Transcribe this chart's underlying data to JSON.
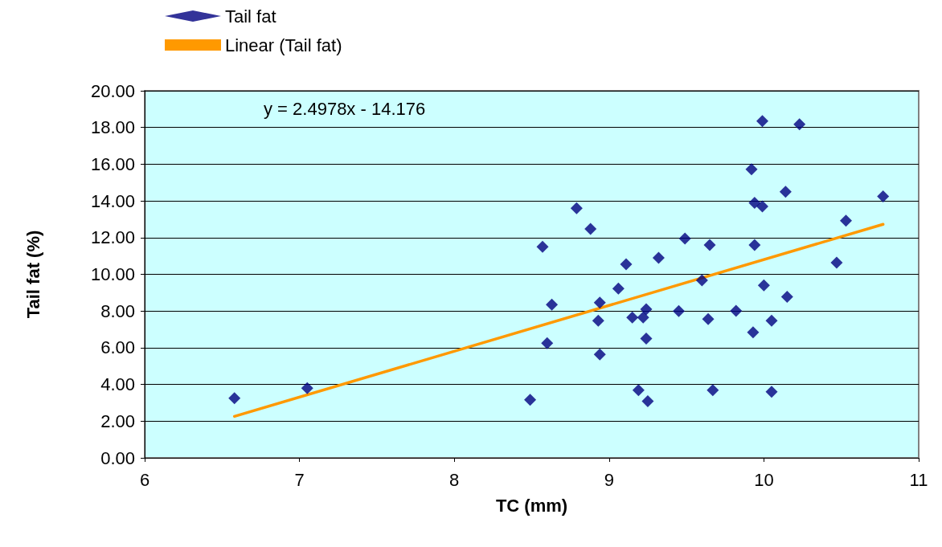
{
  "chart_data": {
    "type": "scatter",
    "xlabel": "TC (mm)",
    "ylabel": "Tail fat (%)",
    "annotations": [
      "y = 2.4978x - 14.176"
    ],
    "series": [
      {
        "name": "Tail fat",
        "color": "#000080",
        "marker": "diamond",
        "x": [
          6.58,
          7.05,
          8.49,
          8.57,
          8.6,
          8.63,
          8.79,
          8.88,
          8.93,
          8.94,
          8.94,
          9.06,
          9.11,
          9.15,
          9.19,
          9.22,
          9.24,
          9.24,
          9.25,
          9.32,
          9.45,
          9.49,
          9.6,
          9.64,
          9.65,
          9.67,
          9.82,
          9.92,
          9.93,
          9.94,
          9.94,
          9.99,
          9.99,
          10.0,
          10.05,
          10.05,
          10.14,
          10.15,
          10.23,
          10.47,
          10.53,
          10.77
        ],
        "values": [
          3.25,
          3.8,
          3.16,
          11.5,
          6.25,
          8.35,
          13.6,
          12.47,
          7.47,
          8.46,
          5.63,
          9.22,
          10.55,
          7.65,
          3.69,
          7.65,
          8.1,
          6.5,
          3.09,
          10.9,
          8.0,
          11.95,
          9.67,
          7.56,
          11.6,
          3.69,
          8.01,
          15.72,
          6.84,
          13.89,
          11.6,
          18.35,
          13.7,
          9.4,
          7.47,
          3.6,
          14.5,
          8.78,
          18.17,
          10.63,
          12.92,
          14.24
        ]
      },
      {
        "name": "Linear (Tail fat)",
        "type": "line",
        "color": "#ff9900",
        "marker": "none",
        "x": [
          6.58,
          10.77
        ],
        "values": [
          2.26,
          12.725
        ]
      }
    ],
    "xlim": [
      6,
      11
    ],
    "xticks": [
      6,
      7,
      8,
      9,
      10,
      11
    ],
    "ylim": [
      0,
      20
    ],
    "yticks": [
      {
        "value": 0,
        "label": "0.00"
      },
      {
        "value": 2,
        "label": "2.00"
      },
      {
        "value": 4,
        "label": "4.00"
      },
      {
        "value": 6,
        "label": "6.00"
      },
      {
        "value": 8,
        "label": "8.00"
      },
      {
        "value": 10,
        "label": "10.00"
      },
      {
        "value": 12,
        "label": "12.00"
      },
      {
        "value": 14,
        "label": "14.00"
      },
      {
        "value": 16,
        "label": "16.00"
      },
      {
        "value": 18,
        "label": "18.00"
      },
      {
        "value": 20,
        "label": "20.00"
      }
    ],
    "grid": "y",
    "legend": "top left"
  }
}
